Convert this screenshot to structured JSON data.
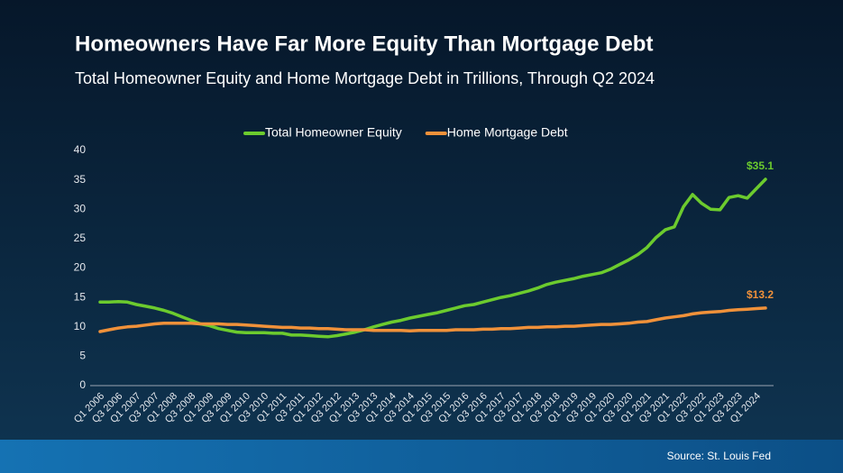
{
  "chart_data": {
    "type": "line",
    "title": "Homeowners Have Far More Equity Than Mortgage Debt",
    "subtitle": "Total Homeowner Equity and Home Mortgage Debt in Trillions, Through Q2 2024",
    "source": "Source: St. Louis Fed",
    "categories": [
      "Q1 2006",
      null,
      "Q3 2006",
      null,
      "Q1 2007",
      null,
      "Q3 2007",
      null,
      "Q1 2008",
      null,
      "Q3 2008",
      null,
      "Q1 2009",
      null,
      "Q3 2009",
      null,
      "Q1 2010",
      null,
      "Q3 2010",
      null,
      "Q1 2011",
      null,
      "Q3 2011",
      null,
      "Q1 2012",
      null,
      "Q3 2012",
      null,
      "Q1 2013",
      null,
      "Q3 2013",
      null,
      "Q1 2014",
      null,
      "Q3 2014",
      null,
      "Q1 2015",
      null,
      "Q3 2015",
      null,
      "Q1 2016",
      null,
      "Q3 2016",
      null,
      "Q1 2017",
      null,
      "Q3 2017",
      null,
      "Q1 2018",
      null,
      "Q3 2018",
      null,
      "Q1 2019",
      null,
      "Q3 2019",
      null,
      "Q1 2020",
      null,
      "Q3 2020",
      null,
      "Q1 2021",
      null,
      "Q3 2021",
      null,
      "Q1 2022",
      null,
      "Q3 2022",
      null,
      "Q1 2023",
      null,
      "Q3 2023",
      null,
      "Q1 2024",
      null
    ],
    "series": [
      {
        "name": "Total Homeowner Equity",
        "color": "#6ccb2e",
        "end_label": "$35.1",
        "values": [
          14.2,
          14.2,
          14.3,
          14.2,
          13.8,
          13.5,
          13.2,
          12.8,
          12.3,
          11.7,
          11.1,
          10.5,
          10.2,
          9.7,
          9.4,
          9.1,
          9.0,
          9.0,
          9.0,
          8.9,
          8.9,
          8.6,
          8.6,
          8.5,
          8.4,
          8.3,
          8.5,
          8.8,
          9.1,
          9.5,
          10.0,
          10.4,
          10.8,
          11.1,
          11.5,
          11.8,
          12.1,
          12.4,
          12.8,
          13.2,
          13.6,
          13.8,
          14.2,
          14.6,
          15.0,
          15.3,
          15.7,
          16.1,
          16.6,
          17.2,
          17.6,
          17.9,
          18.2,
          18.6,
          18.9,
          19.2,
          19.8,
          20.6,
          21.4,
          22.3,
          23.5,
          25.2,
          26.5,
          27.0,
          30.4,
          32.5,
          31.0,
          30.0,
          29.9,
          32.0,
          32.3,
          31.9,
          33.5,
          35.1
        ]
      },
      {
        "name": "Home Mortgage Debt",
        "color": "#f0913a",
        "end_label": "$13.2",
        "values": [
          9.2,
          9.5,
          9.8,
          10.0,
          10.1,
          10.3,
          10.5,
          10.6,
          10.6,
          10.6,
          10.6,
          10.5,
          10.5,
          10.5,
          10.4,
          10.4,
          10.3,
          10.2,
          10.1,
          10.0,
          9.9,
          9.9,
          9.8,
          9.8,
          9.7,
          9.7,
          9.6,
          9.5,
          9.5,
          9.5,
          9.4,
          9.4,
          9.4,
          9.4,
          9.3,
          9.4,
          9.4,
          9.4,
          9.4,
          9.5,
          9.5,
          9.5,
          9.6,
          9.6,
          9.7,
          9.7,
          9.8,
          9.9,
          9.9,
          10.0,
          10.0,
          10.1,
          10.1,
          10.2,
          10.3,
          10.4,
          10.4,
          10.5,
          10.6,
          10.8,
          10.9,
          11.2,
          11.5,
          11.7,
          11.9,
          12.2,
          12.4,
          12.5,
          12.6,
          12.8,
          12.9,
          13.0,
          13.1,
          13.2
        ]
      }
    ],
    "ylim": [
      0,
      40
    ],
    "yticks": [
      0,
      5,
      10,
      15,
      20,
      25,
      30,
      35,
      40
    ],
    "legend": "top"
  }
}
